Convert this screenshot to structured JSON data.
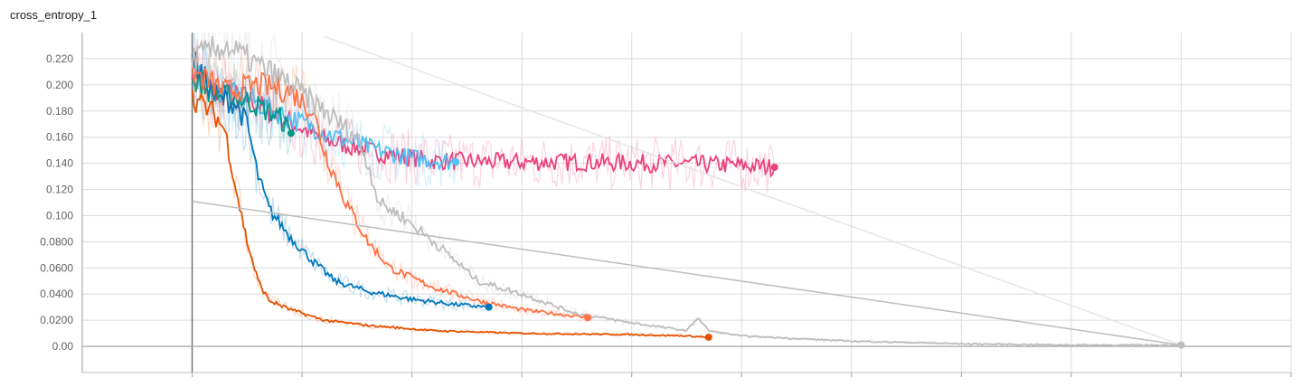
{
  "chart_data": {
    "type": "line",
    "title": "cross_entropy_1",
    "xlabel": "",
    "ylabel": "",
    "ylim": [
      -0.02,
      0.24
    ],
    "yticks": [
      "0.00",
      "0.0200",
      "0.0400",
      "0.0600",
      "0.0800",
      "0.100",
      "0.120",
      "0.140",
      "0.160",
      "0.180",
      "0.200",
      "0.220"
    ],
    "ytick_values": [
      0,
      0.02,
      0.04,
      0.06,
      0.08,
      0.1,
      0.12,
      0.14,
      0.16,
      0.18,
      0.2,
      0.22
    ],
    "xlim": [
      -1,
      10
    ],
    "xgrid": [
      0,
      1,
      2,
      3,
      4,
      5,
      6,
      7,
      8,
      9,
      10
    ],
    "grid": true,
    "series": [
      {
        "color": "#ec407a",
        "values": [
          [
            0,
            0.215
          ],
          [
            0.2,
            0.194
          ],
          [
            0.5,
            0.19
          ],
          [
            0.8,
            0.175
          ],
          [
            1.2,
            0.158
          ],
          [
            1.7,
            0.148
          ],
          [
            2.2,
            0.142
          ],
          [
            2.8,
            0.141
          ],
          [
            3.5,
            0.141
          ],
          [
            4.2,
            0.14
          ],
          [
            4.8,
            0.139
          ],
          [
            5.3,
            0.137
          ]
        ]
      },
      {
        "color": "#4fc3f7",
        "values": [
          [
            0,
            0.21
          ],
          [
            0.2,
            0.195
          ],
          [
            0.5,
            0.19
          ],
          [
            0.8,
            0.178
          ],
          [
            1.2,
            0.164
          ],
          [
            1.6,
            0.152
          ],
          [
            2.0,
            0.144
          ],
          [
            2.4,
            0.141
          ]
        ]
      },
      {
        "color": "#009688",
        "values": [
          [
            0,
            0.205
          ],
          [
            0.2,
            0.193
          ],
          [
            0.5,
            0.188
          ],
          [
            0.8,
            0.175
          ],
          [
            0.9,
            0.163
          ]
        ]
      },
      {
        "color": "#0077bb",
        "values": [
          [
            0,
            0.22
          ],
          [
            0.2,
            0.193
          ],
          [
            0.4,
            0.185
          ],
          [
            0.5,
            0.17
          ],
          [
            0.6,
            0.13
          ],
          [
            0.7,
            0.105
          ],
          [
            0.9,
            0.083
          ],
          [
            1.1,
            0.065
          ],
          [
            1.3,
            0.05
          ],
          [
            1.6,
            0.042
          ],
          [
            2.0,
            0.036
          ],
          [
            2.4,
            0.032
          ],
          [
            2.7,
            0.03
          ]
        ]
      },
      {
        "color": "#ff7043",
        "values": [
          [
            0,
            0.21
          ],
          [
            0.3,
            0.195
          ],
          [
            0.6,
            0.2
          ],
          [
            0.9,
            0.195
          ],
          [
            1.1,
            0.18
          ],
          [
            1.2,
            0.15
          ],
          [
            1.4,
            0.11
          ],
          [
            1.6,
            0.08
          ],
          [
            1.8,
            0.06
          ],
          [
            2.2,
            0.045
          ],
          [
            2.6,
            0.035
          ],
          [
            3.0,
            0.028
          ],
          [
            3.6,
            0.022
          ]
        ]
      },
      {
        "color": "#e65100",
        "values": [
          [
            0,
            0.19
          ],
          [
            0.2,
            0.178
          ],
          [
            0.3,
            0.165
          ],
          [
            0.4,
            0.12
          ],
          [
            0.5,
            0.08
          ],
          [
            0.6,
            0.05
          ],
          [
            0.7,
            0.035
          ],
          [
            0.9,
            0.028
          ],
          [
            1.2,
            0.02
          ],
          [
            1.6,
            0.016
          ],
          [
            2.2,
            0.012
          ],
          [
            3.0,
            0.01
          ],
          [
            4.0,
            0.009
          ],
          [
            4.5,
            0.008
          ],
          [
            4.7,
            0.007
          ]
        ]
      },
      {
        "color": "#bdbdbd",
        "values": [
          [
            0,
            0.22
          ],
          [
            0.3,
            0.23
          ],
          [
            0.6,
            0.215
          ],
          [
            0.9,
            0.2
          ],
          [
            1.2,
            0.18
          ],
          [
            1.5,
            0.16
          ],
          [
            1.6,
            0.14
          ],
          [
            1.7,
            0.11
          ],
          [
            1.9,
            0.1
          ],
          [
            2.2,
            0.08
          ],
          [
            2.6,
            0.05
          ],
          [
            3.0,
            0.04
          ],
          [
            3.5,
            0.025
          ],
          [
            4.0,
            0.018
          ],
          [
            4.5,
            0.012
          ],
          [
            4.6,
            0.022
          ],
          [
            4.7,
            0.012
          ],
          [
            5.0,
            0.008
          ],
          [
            6.0,
            0.004
          ],
          [
            7.0,
            0.002
          ],
          [
            8.0,
            0.001
          ],
          [
            9.0,
            0.001
          ]
        ]
      },
      {
        "color": "#bdbdbd",
        "values": [
          [
            0,
            0.111
          ],
          [
            9.0,
            0.001
          ]
        ]
      },
      {
        "color": "#e0e0e0",
        "values": [
          [
            1.2,
            0.237
          ],
          [
            9.0,
            0.001
          ]
        ]
      }
    ]
  }
}
